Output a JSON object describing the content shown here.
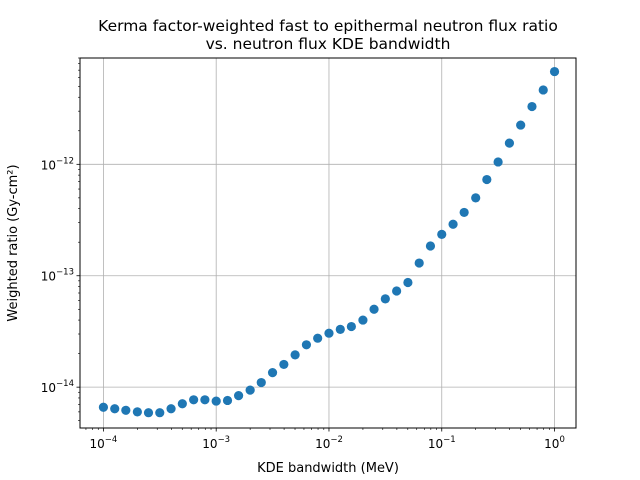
{
  "chart_data": {
    "type": "scatter",
    "title_line1": "Kerma factor-weighted fast to epithermal neutron flux ratio",
    "title_line2": "vs. neutron flux KDE bandwidth",
    "xlabel": "KDE bandwidth (MeV)",
    "ylabel": "Weighted ratio (Gy-cm²)",
    "x_scale": "log",
    "y_scale": "log",
    "xlim": [
      6.2e-05,
      1.55
    ],
    "ylim": [
      4.3e-15,
      9e-12
    ],
    "grid": true,
    "marker_color": "#1f77b4",
    "x_ticks": [
      {
        "value": 0.0001,
        "base": "10",
        "exp": "−4"
      },
      {
        "value": 0.001,
        "base": "10",
        "exp": "−3"
      },
      {
        "value": 0.01,
        "base": "10",
        "exp": "−2"
      },
      {
        "value": 0.1,
        "base": "10",
        "exp": "−1"
      },
      {
        "value": 1,
        "base": "10",
        "exp": "0"
      }
    ],
    "y_ticks": [
      {
        "value": 1e-14,
        "base": "10",
        "exp": "−14"
      },
      {
        "value": 1e-13,
        "base": "10",
        "exp": "−13"
      },
      {
        "value": 1e-12,
        "base": "10",
        "exp": "−12"
      }
    ],
    "x": [
      0.0001,
      0.000126,
      0.000158,
      0.0002,
      0.000251,
      0.000316,
      0.000398,
      0.000501,
      0.000631,
      0.000794,
      0.001,
      0.00126,
      0.00158,
      0.002,
      0.00251,
      0.00316,
      0.00398,
      0.00501,
      0.00631,
      0.00794,
      0.01,
      0.0126,
      0.0158,
      0.02,
      0.0251,
      0.0316,
      0.0398,
      0.0501,
      0.0631,
      0.0794,
      0.1,
      0.126,
      0.158,
      0.2,
      0.251,
      0.316,
      0.398,
      0.501,
      0.631,
      0.794,
      1.0
    ],
    "y": [
      6.6e-15,
      6.4e-15,
      6.2e-15,
      6e-15,
      5.9e-15,
      5.9e-15,
      6.4e-15,
      7.1e-15,
      7.7e-15,
      7.7e-15,
      7.5e-15,
      7.6e-15,
      8.4e-15,
      9.4e-15,
      1.1e-14,
      1.35e-14,
      1.6e-14,
      1.95e-14,
      2.4e-14,
      2.75e-14,
      3.05e-14,
      3.3e-14,
      3.5e-14,
      4e-14,
      5e-14,
      6.2e-14,
      7.3e-14,
      8.7e-14,
      1.3e-13,
      1.85e-13,
      2.35e-13,
      2.9e-13,
      3.7e-13,
      5e-13,
      7.3e-13,
      1.05e-12,
      1.55e-12,
      2.25e-12,
      3.3e-12,
      4.65e-12,
      6.8e-12
    ]
  }
}
